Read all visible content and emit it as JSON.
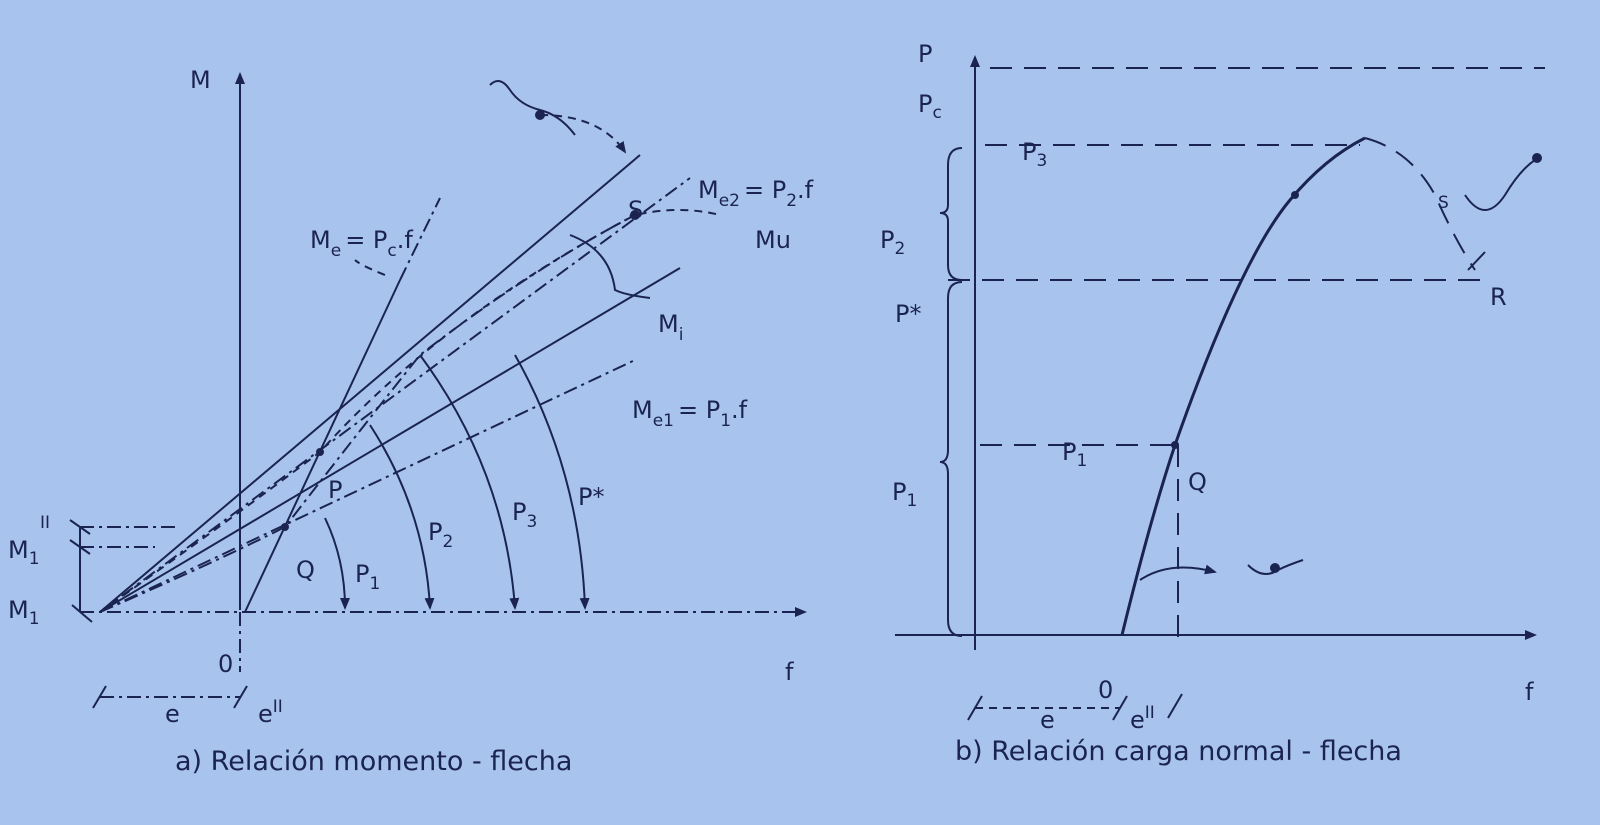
{
  "left": {
    "axis_y": "M",
    "axis_x": "f",
    "origin": "0",
    "me2": [
      "M",
      "e2",
      "= P",
      "2",
      ".f"
    ],
    "me": [
      "M",
      "e",
      "= P",
      "c",
      ".f"
    ],
    "s": "S",
    "mu": "Mu",
    "mi": [
      "M",
      "i"
    ],
    "me1": [
      "M",
      "e1",
      "= P",
      "1",
      ".f"
    ],
    "p": "P",
    "q": "Q",
    "p1": [
      "P",
      "1"
    ],
    "p2": [
      "P",
      "2"
    ],
    "p3": [
      "P",
      "3"
    ],
    "pstar": "P*",
    "ii": "II",
    "m1_upper": [
      "M",
      "1"
    ],
    "m1_lower": [
      "M",
      "1"
    ],
    "e": "e",
    "eii": [
      "e",
      "II"
    ],
    "caption": "a) Relación momento - flecha"
  },
  "right": {
    "axis_y": "P",
    "axis_x": "f",
    "origin": "0",
    "pc": [
      "P",
      "c"
    ],
    "p3_line": [
      "P",
      "3"
    ],
    "p2": [
      "P",
      "2"
    ],
    "pstar": "P*",
    "p1_line": [
      "P",
      "1"
    ],
    "p1": [
      "P",
      "1"
    ],
    "r": "R",
    "s": "S",
    "q": "Q",
    "e": "e",
    "eii": [
      "e",
      "II"
    ],
    "caption": "b) Relación carga normal - flecha"
  }
}
